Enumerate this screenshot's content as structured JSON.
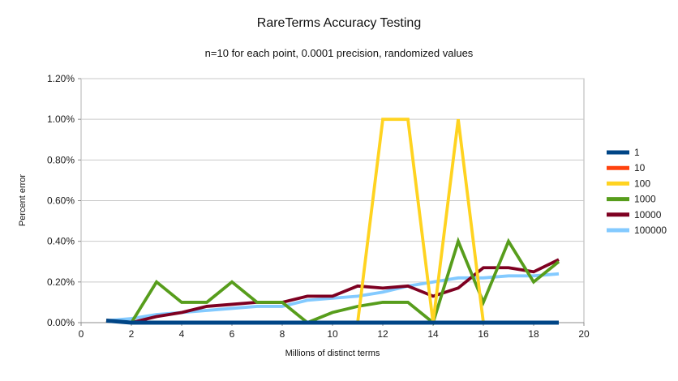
{
  "title": "RareTerms Accuracy Testing",
  "subtitle": "n=10 for each point, 0.0001 precision, randomized values",
  "axes": {
    "y_label": "Percent error",
    "x_label": "Millions of distinct terms",
    "y_tick_labels": [
      "0.00%",
      "0.20%",
      "0.40%",
      "0.60%",
      "0.80%",
      "1.00%",
      "1.20%"
    ],
    "x_tick_labels": [
      "0",
      "2",
      "4",
      "6",
      "8",
      "10",
      "12",
      "14",
      "16",
      "18",
      "20"
    ]
  },
  "legend": {
    "position": "right",
    "items": [
      {
        "label": "1",
        "color": "#004586"
      },
      {
        "label": "10",
        "color": "#ff420e"
      },
      {
        "label": "100",
        "color": "#ffd320"
      },
      {
        "label": "1000",
        "color": "#579d1c"
      },
      {
        "label": "10000",
        "color": "#7e0021"
      },
      {
        "label": "100000",
        "color": "#83caff"
      }
    ]
  },
  "chart_data": {
    "type": "line",
    "title": "RareTerms Accuracy Testing",
    "subtitle": "n=10 for each point, 0.0001 precision, randomized values",
    "xlabel": "Millions of distinct terms",
    "ylabel": "Percent error",
    "xlim": [
      0,
      20
    ],
    "ylim": [
      0,
      1.2
    ],
    "y_unit": "percent",
    "grid": true,
    "legend_position": "right",
    "x": [
      1,
      2,
      3,
      4,
      5,
      6,
      7,
      8,
      9,
      10,
      11,
      12,
      13,
      14,
      15,
      16,
      17,
      18,
      19
    ],
    "series": [
      {
        "name": "1",
        "color": "#004586",
        "values": [
          0.01,
          0,
          0,
          0,
          0,
          0,
          0,
          0,
          0,
          0,
          0,
          0,
          0,
          0,
          0,
          0,
          0,
          0,
          0
        ]
      },
      {
        "name": "10",
        "color": "#ff420e",
        "values": [
          0.01,
          0,
          0,
          0,
          0,
          0,
          0,
          0,
          0,
          0,
          0,
          0,
          0,
          0,
          0,
          0,
          0,
          0,
          0
        ]
      },
      {
        "name": "100",
        "color": "#ffd320",
        "values": [
          0.01,
          0,
          0,
          0,
          0,
          0,
          0,
          0,
          0,
          0,
          0,
          1.0,
          1.0,
          0,
          1.0,
          0,
          0,
          0,
          0
        ]
      },
      {
        "name": "1000",
        "color": "#579d1c",
        "values": [
          0.01,
          0,
          0.2,
          0.1,
          0.1,
          0.2,
          0.1,
          0.1,
          0,
          0.05,
          0.08,
          0.1,
          0.1,
          0,
          0.4,
          0.1,
          0.4,
          0.2,
          0.3
        ]
      },
      {
        "name": "10000",
        "color": "#7e0021",
        "values": [
          0.01,
          0,
          0.03,
          0.05,
          0.08,
          0.09,
          0.1,
          0.1,
          0.13,
          0.13,
          0.18,
          0.17,
          0.18,
          0.13,
          0.17,
          0.27,
          0.27,
          0.25,
          0.31
        ]
      },
      {
        "name": "100000",
        "color": "#83caff",
        "values": [
          0.01,
          0.02,
          0.04,
          0.05,
          0.06,
          0.07,
          0.08,
          0.08,
          0.11,
          0.12,
          0.13,
          0.15,
          0.18,
          0.2,
          0.22,
          0.22,
          0.23,
          0.23,
          0.24
        ]
      }
    ]
  }
}
